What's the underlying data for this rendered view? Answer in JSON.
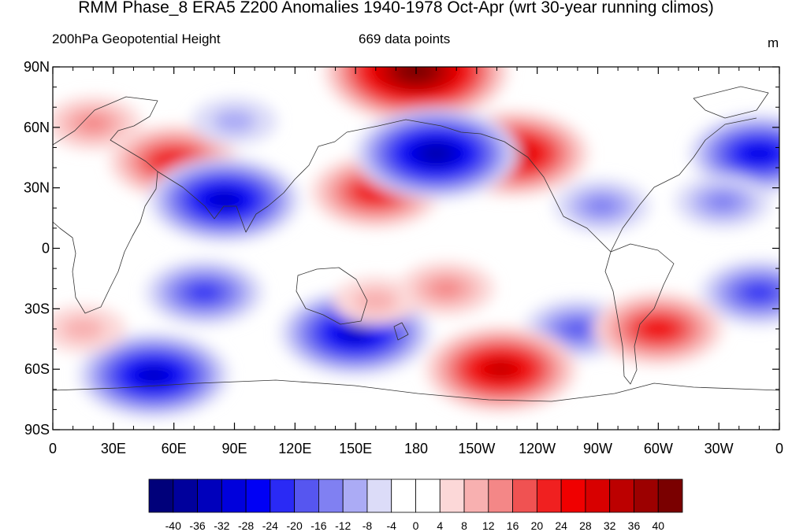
{
  "title": "RMM Phase_8 ERA5 Z200 Anomalies 1940-1978 Oct-Apr (wrt 30-year running climos)",
  "left_subtitle": "200hPa Geopotential Height",
  "center_subtitle": "669 data points",
  "units": "m",
  "lat_labels": [
    "90N",
    "60N",
    "30N",
    "0",
    "30S",
    "60S",
    "90S"
  ],
  "lon_labels": [
    "0",
    "30E",
    "60E",
    "90E",
    "120E",
    "150E",
    "180",
    "150W",
    "120W",
    "90W",
    "60W",
    "30W",
    "0"
  ],
  "colorbar": {
    "labels": [
      "-40",
      "-36",
      "-32",
      "-28",
      "-24",
      "-20",
      "-16",
      "-12",
      "-8",
      "-4",
      "0",
      "4",
      "8",
      "12",
      "16",
      "20",
      "24",
      "28",
      "32",
      "36",
      "40"
    ],
    "colors": [
      "#00007a",
      "#00009c",
      "#0000bc",
      "#0000dc",
      "#0000f5",
      "#2a2af5",
      "#5656f0",
      "#8080f2",
      "#ababf5",
      "#dcdcf8",
      "#ffffff",
      "#ffffff",
      "#fcd8d8",
      "#f8b0b0",
      "#f48787",
      "#f05252",
      "#f02020",
      "#f00000",
      "#d80000",
      "#bc0000",
      "#9c0000",
      "#7a0000"
    ]
  },
  "map_data": {
    "projection": "cylindrical-equidistant",
    "lon_range": [
      0,
      360
    ],
    "lat_range": [
      -90,
      90
    ],
    "field": "Z200 anomaly",
    "anomaly_features": [
      {
        "lon": 180,
        "lat": 88,
        "value": 42
      },
      {
        "lon": 60,
        "lat": 43,
        "value": 24
      },
      {
        "lon": 160,
        "lat": 28,
        "value": 24
      },
      {
        "lon": 228,
        "lat": 47,
        "value": 32
      },
      {
        "lon": 20,
        "lat": 62,
        "value": 12
      },
      {
        "lon": 190,
        "lat": 47,
        "value": -36
      },
      {
        "lon": 85,
        "lat": 24,
        "value": -32
      },
      {
        "lon": 350,
        "lat": 47,
        "value": -28
      },
      {
        "lon": 90,
        "lat": 63,
        "value": -8
      },
      {
        "lon": 272,
        "lat": 21,
        "value": -12
      },
      {
        "lon": 332,
        "lat": 23,
        "value": -12
      },
      {
        "lon": 75,
        "lat": -22,
        "value": -20
      },
      {
        "lon": 350,
        "lat": -22,
        "value": -20
      },
      {
        "lon": 260,
        "lat": -40,
        "value": -16
      },
      {
        "lon": 150,
        "lat": -42,
        "value": -32
      },
      {
        "lon": 50,
        "lat": -63,
        "value": -32
      },
      {
        "lon": 222,
        "lat": -60,
        "value": 32
      },
      {
        "lon": 300,
        "lat": -40,
        "value": 24
      },
      {
        "lon": 195,
        "lat": -20,
        "value": 12
      },
      {
        "lon": 160,
        "lat": -26,
        "value": 8
      },
      {
        "lon": 15,
        "lat": -40,
        "value": 8
      }
    ]
  }
}
